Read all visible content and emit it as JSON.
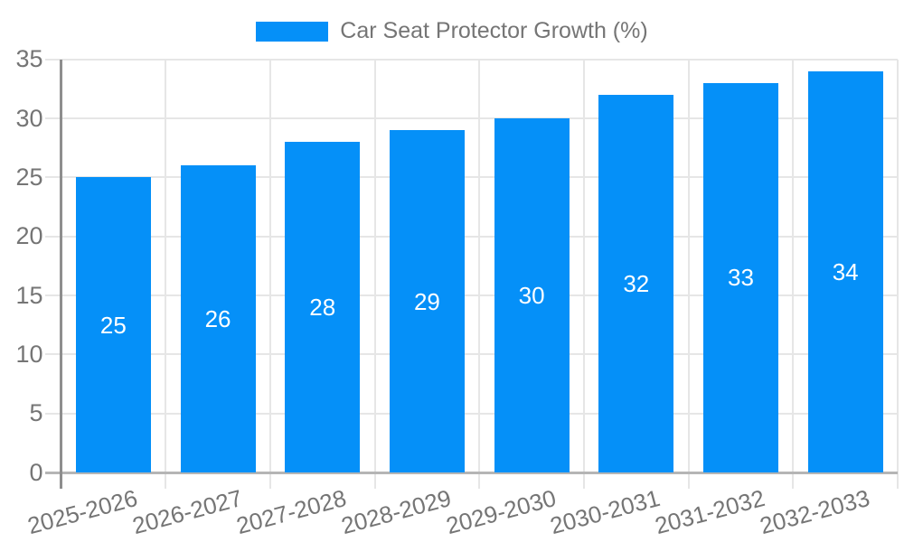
{
  "legend": {
    "label": "Car Seat Protector Growth (%)",
    "swatch_color": "#0590F8"
  },
  "colors": {
    "bar": "#0590F8",
    "grid": "#E6E6E6",
    "baseline": "#B5B5B5",
    "axis": "#8E8E8E",
    "tick_text": "#757575",
    "bar_label_text": "#FFFFFF",
    "background": "#FFFFFF"
  },
  "chart_data": {
    "type": "bar",
    "title": "Car Seat Protector Growth (%)",
    "categories": [
      "2025-2026",
      "2026-2027",
      "2027-2028",
      "2028-2029",
      "2029-2030",
      "2030-2031",
      "2031-2032",
      "2032-2033"
    ],
    "values": [
      25,
      26,
      28,
      29,
      30,
      32,
      33,
      34
    ],
    "xlabel": "",
    "ylabel": "",
    "ylim": [
      0,
      35
    ],
    "yticks": [
      0,
      5,
      10,
      15,
      20,
      25,
      30,
      35
    ],
    "grid": true,
    "legend_position": "top-center",
    "bar_value_labels": "inside-center"
  }
}
